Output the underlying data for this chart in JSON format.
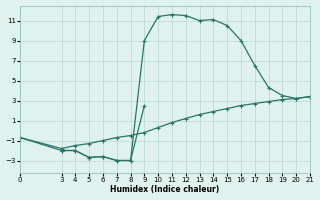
{
  "xlabel": "Humidex (Indice chaleur)",
  "bg_color": "#dff2ee",
  "line_color": "#2a7568",
  "grid_color": "#c4deda",
  "curve1_x": [
    0,
    3,
    4,
    5,
    6,
    7,
    8,
    9,
    10,
    11,
    12,
    13,
    14,
    15,
    16,
    17,
    18,
    19,
    20,
    21
  ],
  "curve1_y": [
    -0.7,
    -2.0,
    -2.0,
    -2.7,
    -2.6,
    -3.0,
    -3.0,
    9.0,
    11.4,
    11.6,
    11.5,
    11.0,
    11.1,
    10.5,
    9.0,
    6.5,
    4.3,
    3.5,
    3.2,
    3.4
  ],
  "curve2_x": [
    3,
    4,
    5,
    6,
    7,
    8,
    9
  ],
  "curve2_y": [
    -2.0,
    -2.0,
    -2.7,
    -2.6,
    -3.0,
    -3.0,
    2.5
  ],
  "curve3_x": [
    0,
    3,
    4,
    5,
    6,
    7,
    8,
    9,
    10,
    11,
    12,
    13,
    14,
    15,
    16,
    17,
    18,
    19,
    20,
    21
  ],
  "curve3_y": [
    -0.7,
    -1.8,
    -1.5,
    -1.3,
    -1.0,
    -0.7,
    -0.5,
    -0.2,
    0.3,
    0.8,
    1.2,
    1.6,
    1.9,
    2.2,
    2.5,
    2.7,
    2.9,
    3.1,
    3.2,
    3.4
  ],
  "xticks": [
    0,
    3,
    4,
    5,
    6,
    7,
    8,
    9,
    10,
    11,
    12,
    13,
    14,
    15,
    16,
    17,
    18,
    19,
    20,
    21
  ],
  "yticks": [
    -3,
    -1,
    1,
    3,
    5,
    7,
    9,
    11
  ],
  "xlim": [
    0,
    21
  ],
  "ylim": [
    -4.2,
    12.5
  ]
}
